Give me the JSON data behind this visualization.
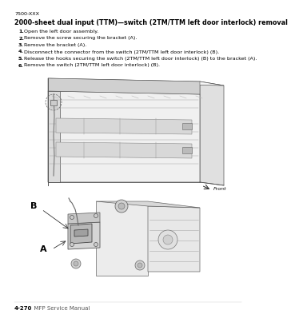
{
  "page_label": "7500-XXX",
  "title": "2000-sheet dual input (TTM)—switch (2TM/TTM left door interlock) removal",
  "steps": [
    "Open the left door assembly.",
    "Remove the screw securing the bracket (A).",
    "Remove the bracket (A).",
    "Disconnect the connector from the switch (2TM/TTM left door interlock) (B).",
    "Release the hooks securing the switch (2TM/TTM left door interlock) (B) to the bracket (A).",
    "Remove the switch (2TM/TTM left door interlock) (B)."
  ],
  "footer_bold": "4-270",
  "footer_normal": "  MFP Service Manual",
  "bg_color": "#ffffff",
  "text_color": "#000000",
  "gray_light": "#e8e8e8",
  "gray_mid": "#c8c8c8",
  "gray_dark": "#a0a0a0",
  "line_color": "#555555",
  "title_fontsize": 5.8,
  "step_fontsize": 4.6,
  "page_label_fontsize": 4.6,
  "footer_fontsize": 5.0,
  "label_fontsize": 8.0,
  "front_fontsize": 4.5
}
